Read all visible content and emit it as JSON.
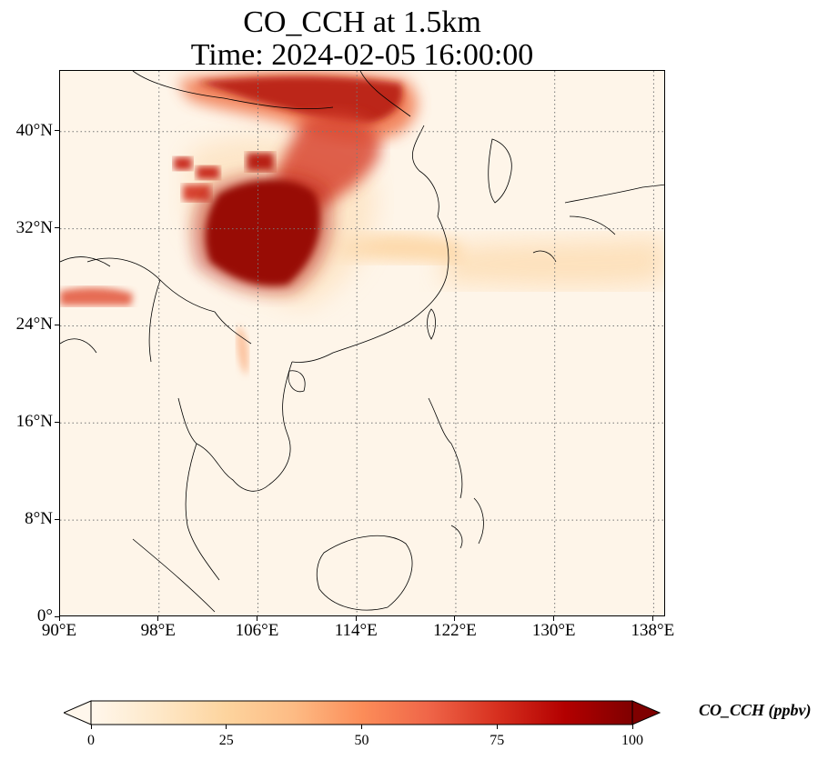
{
  "title": {
    "line1": "CO_CCH at 1.5km",
    "line2": "Time: 2024-02-05 16:00:00"
  },
  "map": {
    "type": "choropleth-field",
    "variable": "CO_CCH",
    "level": "1.5km",
    "lon_range": [
      90,
      139
    ],
    "lat_range": [
      0,
      45
    ],
    "gridlines": "dotted",
    "lon_ticks": [
      {
        "value": 90,
        "label": "90°E"
      },
      {
        "value": 98,
        "label": "98°E"
      },
      {
        "value": 106,
        "label": "106°E"
      },
      {
        "value": 114,
        "label": "114°E"
      },
      {
        "value": 122,
        "label": "122°E"
      },
      {
        "value": 130,
        "label": "130°E"
      },
      {
        "value": 138,
        "label": "138°E"
      }
    ],
    "lat_ticks": [
      {
        "value": 0,
        "label": "0°"
      },
      {
        "value": 8,
        "label": "8°N"
      },
      {
        "value": 16,
        "label": "16°N"
      },
      {
        "value": 24,
        "label": "24°N"
      },
      {
        "value": 32,
        "label": "32°N"
      },
      {
        "value": 40,
        "label": "40°N"
      }
    ],
    "colormap": "OrRd"
  },
  "colorbar": {
    "label": "CO_CCH (ppbv)",
    "min": 0,
    "max": 100,
    "extend": "both",
    "ticks": [
      {
        "value": 0,
        "label": "0"
      },
      {
        "value": 25,
        "label": "25"
      },
      {
        "value": 50,
        "label": "50"
      },
      {
        "value": 75,
        "label": "75"
      },
      {
        "value": 100,
        "label": "100"
      }
    ],
    "colors": [
      "#fff7ec",
      "#fee8c8",
      "#fdd49e",
      "#fdbb84",
      "#fc8d59",
      "#ef6548",
      "#d7301f",
      "#b30000",
      "#7f0000"
    ]
  }
}
